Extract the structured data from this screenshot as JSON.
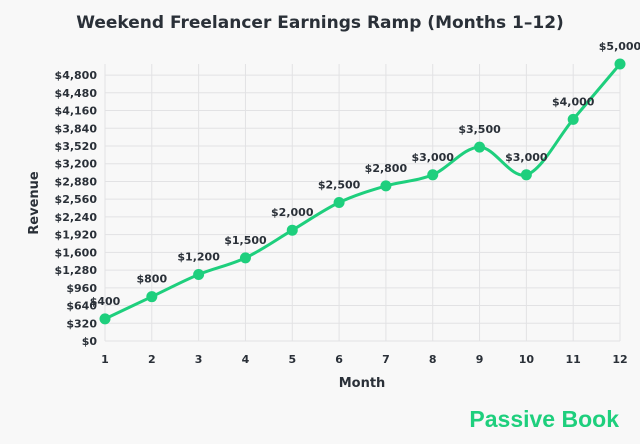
{
  "chart_data": {
    "type": "line",
    "title": "Weekend Freelancer Earnings Ramp (Months 1–12)",
    "xlabel": "Month",
    "ylabel": "Revenue",
    "x": [
      1,
      2,
      3,
      4,
      5,
      6,
      7,
      8,
      9,
      10,
      11,
      12
    ],
    "values": [
      400,
      800,
      1200,
      1500,
      2000,
      2500,
      2800,
      3000,
      3500,
      3000,
      4000,
      5000
    ],
    "data_labels": [
      "$400",
      "$800",
      "$1,200",
      "$1,500",
      "$2,000",
      "$2,500",
      "$2,800",
      "$3,000",
      "$3,500",
      "$3,000",
      "$4,000",
      "$5,000"
    ],
    "yticks": [
      0,
      320,
      640,
      960,
      1280,
      1600,
      1920,
      2240,
      2560,
      2880,
      3200,
      3520,
      3840,
      4160,
      4480,
      4800
    ],
    "ytick_labels": [
      "$0",
      "$320",
      "$640",
      "$960",
      "$1,280",
      "$1,600",
      "$1,920",
      "$2,240",
      "$2,560",
      "$2,880",
      "$3,200",
      "$3,520",
      "$3,840",
      "$4,160",
      "$4,480",
      "$4,800"
    ],
    "xlim": [
      1,
      12
    ],
    "ylim": [
      0,
      5000
    ],
    "grid": true,
    "smooth": true,
    "color": "#1ecf7d"
  },
  "watermark": "Passive Book"
}
